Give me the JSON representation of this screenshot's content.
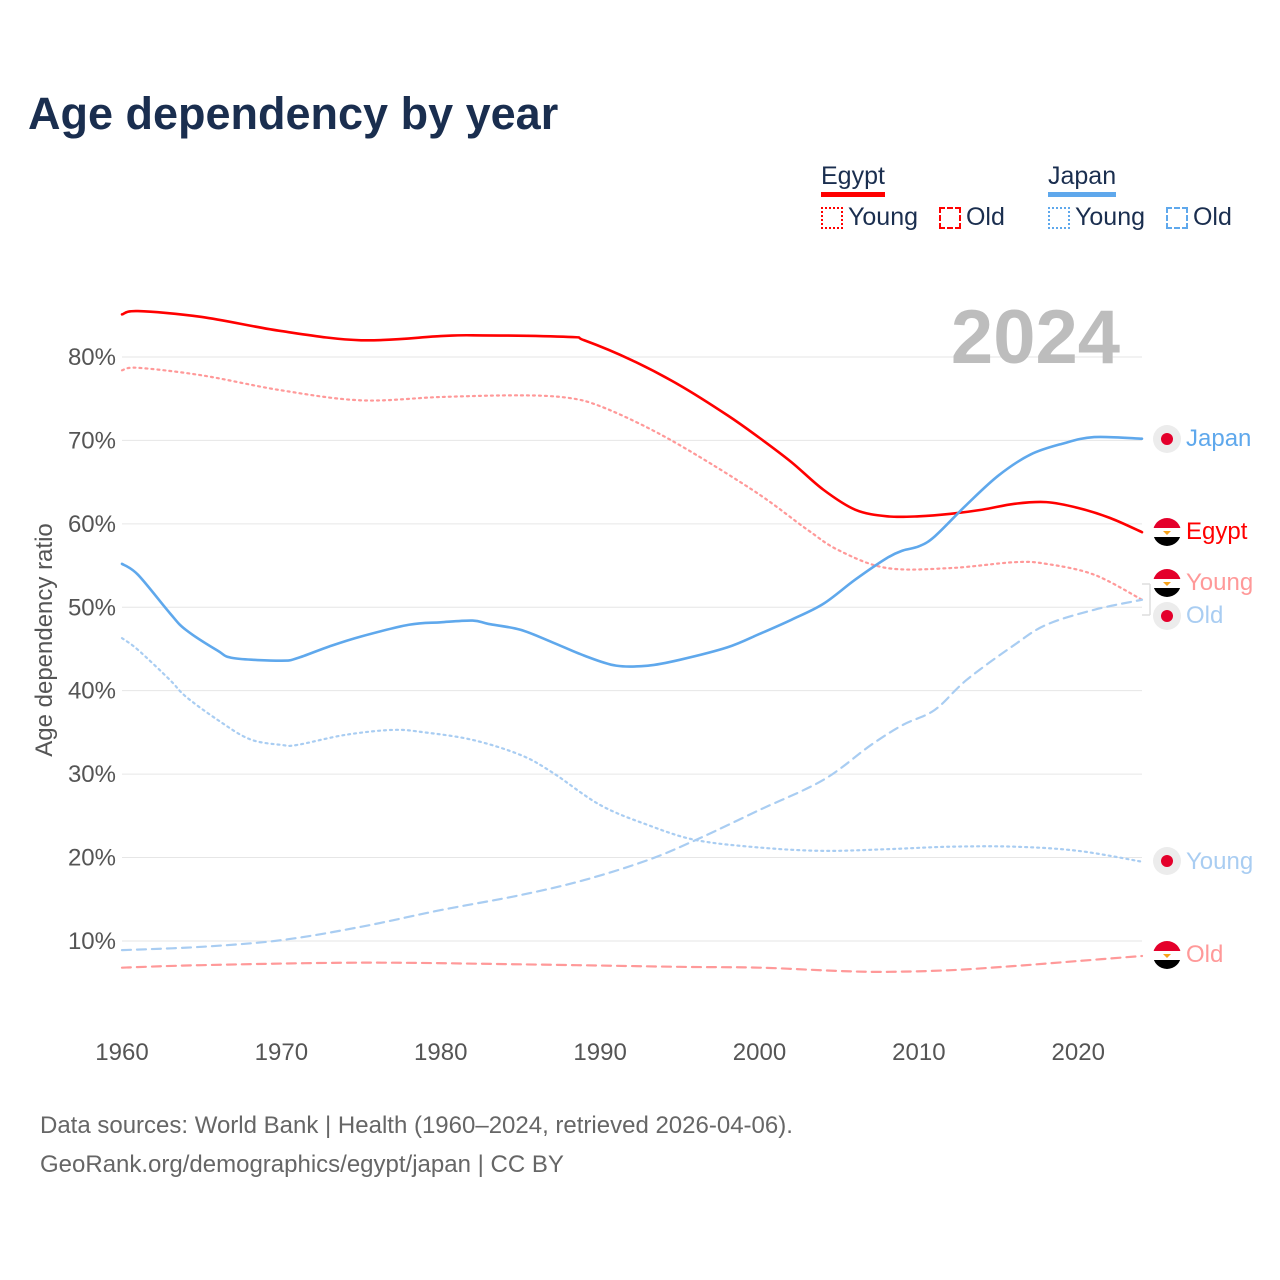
{
  "title": "Age dependency by year",
  "legend": {
    "egypt": {
      "label": "Egypt",
      "young": "Young",
      "old": "Old",
      "color": "#ff0000",
      "light": "#ff9999"
    },
    "japan": {
      "label": "Japan",
      "young": "Young",
      "old": "Old",
      "color": "#5fa8ec",
      "light": "#a9cdf2"
    }
  },
  "year_label": "2024",
  "end_labels": {
    "japan": "Japan",
    "egypt": "Egypt",
    "egypt_young": "Young",
    "japan_old": "Old",
    "japan_young": "Young",
    "egypt_old": "Old"
  },
  "footer": {
    "line1": "Data sources: World Bank | Health (1960–2024, retrieved 2026-04-06).",
    "line2": "GeoRank.org/demographics/egypt/japan | CC BY"
  },
  "chart_data": {
    "type": "line",
    "title": "Age dependency by year",
    "xlabel": "",
    "ylabel": "Age dependency ratio",
    "xlim": [
      1960,
      2024
    ],
    "ylim": [
      0,
      85
    ],
    "grid": true,
    "x_ticks": [
      "1960",
      "1970",
      "1980",
      "1990",
      "2000",
      "2010",
      "2020"
    ],
    "y_ticks": [
      "10%",
      "20%",
      "30%",
      "40%",
      "50%",
      "60%",
      "70%",
      "80%"
    ],
    "series": [
      {
        "name": "Egypt",
        "style": "solid",
        "color": "#ff0000",
        "points": [
          [
            1960,
            85.1
          ],
          [
            1961,
            85.5
          ],
          [
            1965,
            84.8
          ],
          [
            1970,
            83.1
          ],
          [
            1975,
            82.0
          ],
          [
            1980,
            82.5
          ],
          [
            1982,
            82.6
          ],
          [
            1988,
            82.4
          ],
          [
            1989,
            82.0
          ],
          [
            1992,
            79.6
          ],
          [
            1995,
            76.6
          ],
          [
            1998,
            73.0
          ],
          [
            2000,
            70.3
          ],
          [
            2002,
            67.4
          ],
          [
            2004,
            64.1
          ],
          [
            2006,
            61.7
          ],
          [
            2008,
            60.9
          ],
          [
            2010,
            60.9
          ],
          [
            2012,
            61.2
          ],
          [
            2014,
            61.7
          ],
          [
            2016,
            62.4
          ],
          [
            2018,
            62.6
          ],
          [
            2020,
            61.9
          ],
          [
            2022,
            60.7
          ],
          [
            2024,
            59.0
          ]
        ]
      },
      {
        "name": "Egypt Young",
        "style": "dotted",
        "color": "#ff9999",
        "points": [
          [
            1960,
            78.4
          ],
          [
            1961,
            78.7
          ],
          [
            1965,
            77.8
          ],
          [
            1970,
            76.0
          ],
          [
            1975,
            74.8
          ],
          [
            1980,
            75.2
          ],
          [
            1985,
            75.4
          ],
          [
            1988,
            75.1
          ],
          [
            1990,
            74.1
          ],
          [
            1993,
            71.5
          ],
          [
            1996,
            68.3
          ],
          [
            2000,
            63.5
          ],
          [
            2003,
            59.3
          ],
          [
            2005,
            56.8
          ],
          [
            2008,
            54.7
          ],
          [
            2012,
            54.7
          ],
          [
            2016,
            55.4
          ],
          [
            2018,
            55.2
          ],
          [
            2021,
            53.9
          ],
          [
            2024,
            50.9
          ]
        ]
      },
      {
        "name": "Egypt Old",
        "style": "dashed",
        "color": "#ff9999",
        "points": [
          [
            1960,
            6.8
          ],
          [
            1965,
            7.1
          ],
          [
            1975,
            7.4
          ],
          [
            1985,
            7.2
          ],
          [
            1995,
            6.9
          ],
          [
            2000,
            6.8
          ],
          [
            2005,
            6.4
          ],
          [
            2008,
            6.3
          ],
          [
            2012,
            6.5
          ],
          [
            2016,
            7.0
          ],
          [
            2020,
            7.6
          ],
          [
            2024,
            8.2
          ]
        ]
      },
      {
        "name": "Japan",
        "style": "solid",
        "color": "#5fa8ec",
        "points": [
          [
            1960,
            55.2
          ],
          [
            1961,
            53.9
          ],
          [
            1963,
            49.3
          ],
          [
            1964,
            47.3
          ],
          [
            1966,
            44.8
          ],
          [
            1967,
            43.9
          ],
          [
            1970,
            43.6
          ],
          [
            1971,
            43.9
          ],
          [
            1973,
            45.3
          ],
          [
            1975,
            46.5
          ],
          [
            1978,
            47.9
          ],
          [
            1980,
            48.2
          ],
          [
            1982,
            48.4
          ],
          [
            1983,
            48.0
          ],
          [
            1985,
            47.3
          ],
          [
            1987,
            45.8
          ],
          [
            1989,
            44.2
          ],
          [
            1991,
            43.0
          ],
          [
            1993,
            43.0
          ],
          [
            1995,
            43.7
          ],
          [
            1998,
            45.2
          ],
          [
            2000,
            46.8
          ],
          [
            2002,
            48.5
          ],
          [
            2004,
            50.4
          ],
          [
            2006,
            53.3
          ],
          [
            2008,
            55.9
          ],
          [
            2009,
            56.8
          ],
          [
            2010,
            57.3
          ],
          [
            2011,
            58.5
          ],
          [
            2013,
            62.3
          ],
          [
            2015,
            65.8
          ],
          [
            2017,
            68.3
          ],
          [
            2019,
            69.6
          ],
          [
            2021,
            70.4
          ],
          [
            2024,
            70.2
          ]
        ]
      },
      {
        "name": "Japan Young",
        "style": "dotted",
        "color": "#a9cdf2",
        "points": [
          [
            1960,
            46.3
          ],
          [
            1961,
            44.9
          ],
          [
            1963,
            41.3
          ],
          [
            1964,
            39.3
          ],
          [
            1966,
            36.5
          ],
          [
            1968,
            34.2
          ],
          [
            1970,
            33.5
          ],
          [
            1971,
            33.5
          ],
          [
            1974,
            34.7
          ],
          [
            1977,
            35.3
          ],
          [
            1979,
            35.0
          ],
          [
            1982,
            34.1
          ],
          [
            1985,
            32.3
          ],
          [
            1987,
            30.2
          ],
          [
            1990,
            26.3
          ],
          [
            1993,
            23.9
          ],
          [
            1996,
            22.1
          ],
          [
            2000,
            21.2
          ],
          [
            2004,
            20.8
          ],
          [
            2008,
            21.0
          ],
          [
            2012,
            21.3
          ],
          [
            2016,
            21.3
          ],
          [
            2020,
            20.8
          ],
          [
            2024,
            19.5
          ]
        ]
      },
      {
        "name": "Japan Old",
        "style": "dashed",
        "color": "#a9cdf2",
        "points": [
          [
            1960,
            8.9
          ],
          [
            1965,
            9.3
          ],
          [
            1970,
            10.1
          ],
          [
            1975,
            11.7
          ],
          [
            1980,
            13.7
          ],
          [
            1985,
            15.5
          ],
          [
            1989,
            17.3
          ],
          [
            1993,
            19.7
          ],
          [
            1996,
            22.1
          ],
          [
            2000,
            25.7
          ],
          [
            2004,
            29.3
          ],
          [
            2007,
            33.5
          ],
          [
            2009,
            35.9
          ],
          [
            2011,
            37.7
          ],
          [
            2013,
            41.3
          ],
          [
            2016,
            45.5
          ],
          [
            2018,
            47.9
          ],
          [
            2021,
            49.7
          ],
          [
            2024,
            50.9
          ]
        ]
      }
    ]
  }
}
